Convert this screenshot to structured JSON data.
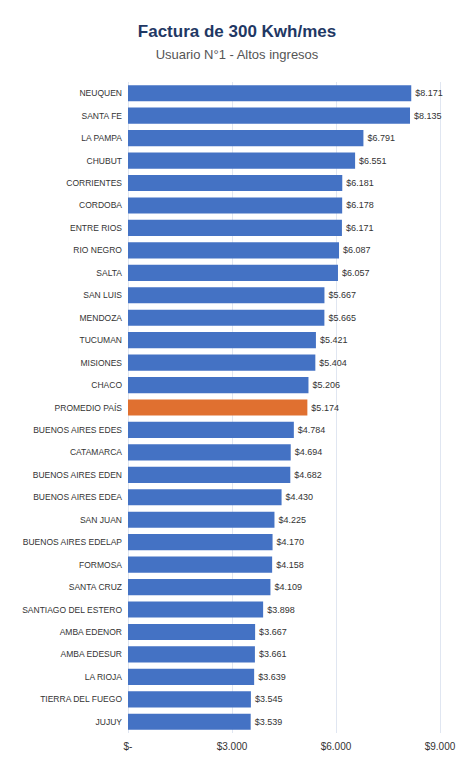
{
  "chart_data": {
    "type": "bar",
    "orientation": "horizontal",
    "title": "Factura de 300 Kwh/mes",
    "subtitle": "Usuario N°1 - Altos ingresos",
    "categories": [
      "NEUQUEN",
      "SANTA FE",
      "LA PAMPA",
      "CHUBUT",
      "CORRIENTES",
      "CORDOBA",
      "ENTRE RIOS",
      "RIO NEGRO",
      "SALTA",
      "SAN LUIS",
      "MENDOZA",
      "TUCUMAN",
      "MISIONES",
      "CHACO",
      "PROMEDIO PAÍS",
      "BUENOS AIRES EDES",
      "CATAMARCA",
      "BUENOS AIRES EDEN",
      "BUENOS AIRES EDEA",
      "SAN JUAN",
      "BUENOS AIRES EDELAP",
      "FORMOSA",
      "SANTA CRUZ",
      "SANTIAGO DEL ESTERO",
      "AMBA EDENOR",
      "AMBA EDESUR",
      "LA RIOJA",
      "TIERRA DEL FUEGO",
      "JUJUY"
    ],
    "values": [
      8171,
      8135,
      6791,
      6551,
      6181,
      6178,
      6171,
      6087,
      6057,
      5667,
      5665,
      5421,
      5404,
      5206,
      5174,
      4784,
      4694,
      4682,
      4430,
      4225,
      4170,
      4158,
      4109,
      3898,
      3667,
      3661,
      3639,
      3545,
      3539
    ],
    "value_labels": [
      "$8.171",
      "$8.135",
      "$6.791",
      "$6.551",
      "$6.181",
      "$6.178",
      "$6.171",
      "$6.087",
      "$6.057",
      "$5.667",
      "$5.665",
      "$5.421",
      "$5.404",
      "$5.206",
      "$5.174",
      "$4.784",
      "$4.694",
      "$4.682",
      "$4.430",
      "$4.225",
      "$4.170",
      "$4.158",
      "$4.109",
      "$3.898",
      "$3.667",
      "$3.661",
      "$3.639",
      "$3.545",
      "$3.539"
    ],
    "colors": [
      "#4472c4",
      "#4472c4",
      "#4472c4",
      "#4472c4",
      "#4472c4",
      "#4472c4",
      "#4472c4",
      "#4472c4",
      "#4472c4",
      "#4472c4",
      "#4472c4",
      "#4472c4",
      "#4472c4",
      "#4472c4",
      "#e07030",
      "#4472c4",
      "#4472c4",
      "#4472c4",
      "#4472c4",
      "#4472c4",
      "#4472c4",
      "#4472c4",
      "#4472c4",
      "#4472c4",
      "#4472c4",
      "#4472c4",
      "#4472c4",
      "#4472c4",
      "#4472c4"
    ],
    "data_labels": true,
    "xlim": [
      0,
      9000
    ],
    "xticks": [
      {
        "value": 0,
        "label": "$-"
      },
      {
        "value": 3000,
        "label": "$3.000"
      },
      {
        "value": 6000,
        "label": "$6.000"
      },
      {
        "value": 9000,
        "label": "$9.000"
      }
    ],
    "grid": true
  }
}
